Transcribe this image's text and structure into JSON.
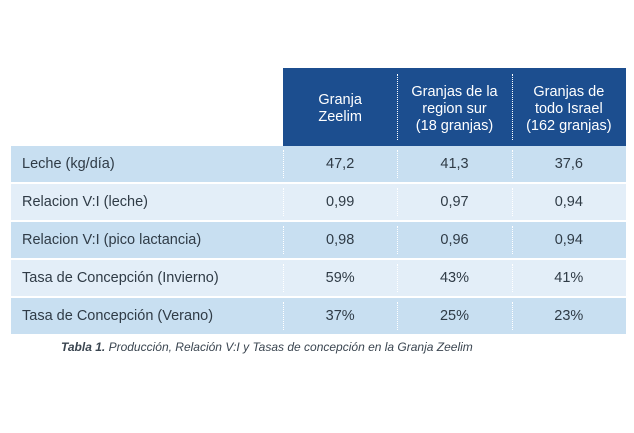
{
  "table": {
    "headers": [
      "Granja\nZeelim",
      "Granjas de la\nregion sur\n(18 granjas)",
      "Granjas de\ntodo Israel\n(162 granjas)"
    ],
    "rows": [
      {
        "label": "Leche (kg/día)",
        "values": [
          "47,2",
          "41,3",
          "37,6"
        ]
      },
      {
        "label": "Relacion V:I (leche)",
        "values": [
          "0,99",
          "0,97",
          "0,94"
        ]
      },
      {
        "label": "Relacion V:I (pico lactancia)",
        "values": [
          "0,98",
          "0,96",
          "0,94"
        ]
      },
      {
        "label": "Tasa de Concepción (Invierno)",
        "values": [
          "59%",
          "43%",
          "41%"
        ]
      },
      {
        "label": "Tasa de Concepción (Verano)",
        "values": [
          "37%",
          "25%",
          "23%"
        ]
      }
    ]
  },
  "caption": {
    "label": "Tabla 1.",
    "text": " Producción, Relación V:I y Tasas de concepción en la Granja Zeelim"
  },
  "colors": {
    "header_bg": "#1c4e8f",
    "row_dark": "#c8dff1",
    "row_light": "#e3eef8"
  }
}
